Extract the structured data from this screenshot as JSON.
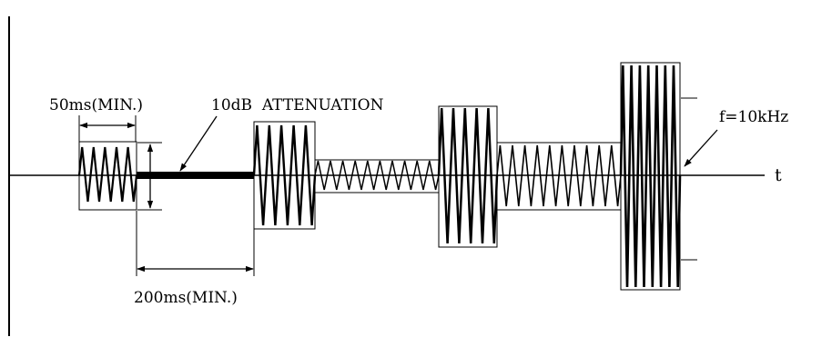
{
  "labels": {
    "min_burst": "50ms(MIN.)",
    "attenuation": "10dB  ATTENUATION",
    "min_gap": "200ms(MIN.)",
    "frequency": "f=10kHz",
    "time_axis": "t"
  },
  "colors": {
    "ink": "#000000",
    "background": "#ffffff"
  }
}
